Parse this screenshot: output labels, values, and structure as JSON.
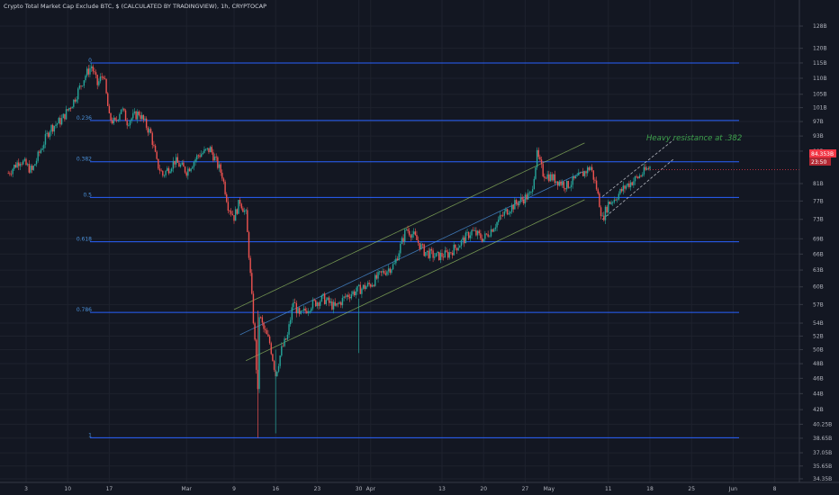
{
  "chart_data": {
    "type": "line",
    "title": "Crypto Total Market Cap Exclude BTC, $ (CALCULATED BY TRADINGVIEW), 1h, CRYPTOCAP",
    "y_scale": "log",
    "y_unit": "USD (B)",
    "ylim": [
      34.35,
      128
    ],
    "y_ticks": [
      {
        "v": 128,
        "label": "128B"
      },
      {
        "v": 120,
        "label": "120B"
      },
      {
        "v": 115,
        "label": "115B"
      },
      {
        "v": 110,
        "label": "110B"
      },
      {
        "v": 105,
        "label": "105B"
      },
      {
        "v": 101,
        "label": "101B"
      },
      {
        "v": 97,
        "label": "97B"
      },
      {
        "v": 93,
        "label": "93B"
      },
      {
        "v": 89,
        "label": "89B"
      },
      {
        "v": 81,
        "label": "81B"
      },
      {
        "v": 77,
        "label": "77B"
      },
      {
        "v": 73,
        "label": "73B"
      },
      {
        "v": 69,
        "label": "69B"
      },
      {
        "v": 66,
        "label": "66B"
      },
      {
        "v": 63,
        "label": "63B"
      },
      {
        "v": 60,
        "label": "60B"
      },
      {
        "v": 57,
        "label": "57B"
      },
      {
        "v": 54,
        "label": "54B"
      },
      {
        "v": 52,
        "label": "52B"
      },
      {
        "v": 50,
        "label": "50B"
      },
      {
        "v": 48,
        "label": "48B"
      },
      {
        "v": 46,
        "label": "46B"
      },
      {
        "v": 44,
        "label": "44B"
      },
      {
        "v": 42,
        "label": "42B"
      },
      {
        "v": 40.25,
        "label": "40.25B"
      },
      {
        "v": 38.65,
        "label": "38.65B"
      },
      {
        "v": 37.05,
        "label": "37.05B"
      },
      {
        "v": 35.65,
        "label": "35.65B"
      },
      {
        "v": 34.35,
        "label": "34.35B"
      }
    ],
    "x_ticks": [
      {
        "d": "2020-02-03",
        "label": "3"
      },
      {
        "d": "2020-02-10",
        "label": "10"
      },
      {
        "d": "2020-02-17",
        "label": "17"
      },
      {
        "d": "2020-03-01",
        "label": "Mar"
      },
      {
        "d": "2020-03-09",
        "label": "9"
      },
      {
        "d": "2020-03-16",
        "label": "16"
      },
      {
        "d": "2020-03-23",
        "label": "23"
      },
      {
        "d": "2020-03-30",
        "label": "30"
      },
      {
        "d": "2020-04-01",
        "label": "Apr"
      },
      {
        "d": "2020-04-13",
        "label": "13"
      },
      {
        "d": "2020-04-20",
        "label": "20"
      },
      {
        "d": "2020-04-27",
        "label": "27"
      },
      {
        "d": "2020-05-01",
        "label": "May"
      },
      {
        "d": "2020-05-11",
        "label": "11"
      },
      {
        "d": "2020-05-18",
        "label": "18"
      },
      {
        "d": "2020-05-25",
        "label": "25"
      },
      {
        "d": "2020-06-01",
        "label": "Jun"
      },
      {
        "d": "2020-06-08",
        "label": "8"
      }
    ],
    "price_path": [
      [
        "2020-01-31",
        83.5
      ],
      [
        "2020-02-02",
        86.8
      ],
      [
        "2020-02-04",
        84.0
      ],
      [
        "2020-02-07",
        95.0
      ],
      [
        "2020-02-09",
        97.5
      ],
      [
        "2020-02-11",
        103.0
      ],
      [
        "2020-02-13",
        111.0
      ],
      [
        "2020-02-14",
        114.0
      ],
      [
        "2020-02-15",
        108.0
      ],
      [
        "2020-02-16",
        111.5
      ],
      [
        "2020-02-17",
        98.0
      ],
      [
        "2020-02-18",
        96.5
      ],
      [
        "2020-02-19",
        101.0
      ],
      [
        "2020-02-20",
        97.0
      ],
      [
        "2020-02-22",
        99.5
      ],
      [
        "2020-02-24",
        93.5
      ],
      [
        "2020-02-25",
        86.0
      ],
      [
        "2020-02-26",
        83.0
      ],
      [
        "2020-02-28",
        86.5
      ],
      [
        "2020-03-01",
        84.0
      ],
      [
        "2020-03-03",
        88.0
      ],
      [
        "2020-03-05",
        89.5
      ],
      [
        "2020-03-07",
        83.0
      ],
      [
        "2020-03-08",
        76.0
      ],
      [
        "2020-03-09",
        73.5
      ],
      [
        "2020-03-10",
        77.0
      ],
      [
        "2020-03-11",
        74.0
      ],
      [
        "2020-03-12",
        58.0
      ],
      [
        "2020-03-13",
        44.0
      ],
      [
        "2020-03-13",
        56.0
      ],
      [
        "2020-03-14",
        53.0
      ],
      [
        "2020-03-15",
        51.0
      ],
      [
        "2020-03-16",
        46.5
      ],
      [
        "2020-03-17",
        50.0
      ],
      [
        "2020-03-18",
        52.0
      ],
      [
        "2020-03-19",
        57.5
      ],
      [
        "2020-03-20",
        55.0
      ],
      [
        "2020-03-22",
        57.0
      ],
      [
        "2020-03-24",
        58.0
      ],
      [
        "2020-03-26",
        56.5
      ],
      [
        "2020-03-28",
        58.5
      ],
      [
        "2020-03-30",
        59.5
      ],
      [
        "2020-04-01",
        60.5
      ],
      [
        "2020-04-03",
        62.5
      ],
      [
        "2020-04-05",
        64.0
      ],
      [
        "2020-04-07",
        71.0
      ],
      [
        "2020-04-08",
        70.0
      ],
      [
        "2020-04-10",
        66.5
      ],
      [
        "2020-04-12",
        65.5
      ],
      [
        "2020-04-14",
        66.0
      ],
      [
        "2020-04-16",
        68.0
      ],
      [
        "2020-04-18",
        70.5
      ],
      [
        "2020-04-20",
        69.0
      ],
      [
        "2020-04-22",
        72.0
      ],
      [
        "2020-04-24",
        75.0
      ],
      [
        "2020-04-26",
        77.0
      ],
      [
        "2020-04-28",
        78.5
      ],
      [
        "2020-04-29",
        88.0
      ],
      [
        "2020-04-30",
        83.5
      ],
      [
        "2020-05-02",
        82.0
      ],
      [
        "2020-05-04",
        80.5
      ],
      [
        "2020-05-06",
        82.5
      ],
      [
        "2020-05-08",
        85.0
      ],
      [
        "2020-05-09",
        80.0
      ],
      [
        "2020-05-10",
        73.0
      ],
      [
        "2020-05-11",
        76.5
      ],
      [
        "2020-05-12",
        77.5
      ],
      [
        "2020-05-14",
        80.5
      ],
      [
        "2020-05-16",
        82.5
      ],
      [
        "2020-05-18",
        85.0
      ]
    ],
    "fib_levels": [
      {
        "ratio": "0",
        "value": 115.0
      },
      {
        "ratio": "0.236",
        "value": 97.3
      },
      {
        "ratio": "0.382",
        "value": 86.3
      },
      {
        "ratio": "0.5",
        "value": 77.8
      },
      {
        "ratio": "0.618",
        "value": 68.4
      },
      {
        "ratio": "0.786",
        "value": 55.7
      },
      {
        "ratio": "1",
        "value": 38.7
      }
    ],
    "annotations": [
      {
        "text": "Heavy resistance at .382",
        "color": "#3fa34d"
      }
    ],
    "last_price_label": "84.353B",
    "countdown_label": "23:50",
    "colors": {
      "background": "#131722",
      "up": "#26a69a",
      "down": "#ef5350",
      "fib": "#2962ff",
      "channel": "#9ccc65",
      "label_badge": "#f23645"
    },
    "grid": true
  }
}
